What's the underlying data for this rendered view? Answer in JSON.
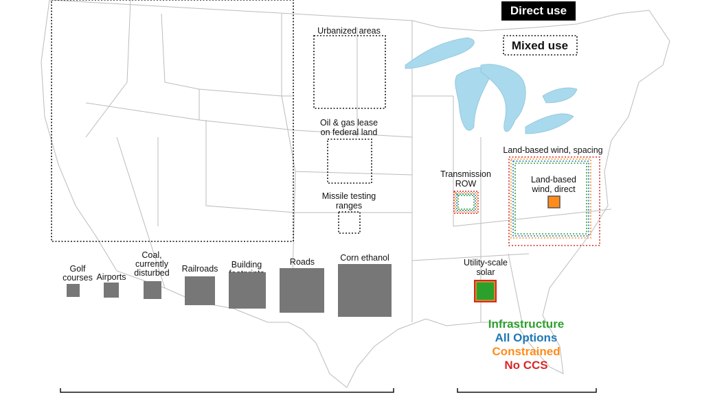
{
  "legend": {
    "direct": "Direct use",
    "mixed": "Mixed use"
  },
  "mixed_use_labels": {
    "urbanized": [
      "Urbanized areas"
    ],
    "oil_gas": [
      "Oil & gas lease",
      "on federal land"
    ],
    "missile": [
      "Missile testing",
      "ranges"
    ]
  },
  "direct_use_labels": {
    "golf": [
      "Golf",
      "courses"
    ],
    "airports": [
      "Airports"
    ],
    "coal": [
      "Coal,",
      "currently",
      "disturbed"
    ],
    "railroads": [
      "Railroads"
    ],
    "buildings": [
      "Building",
      "footprints"
    ],
    "roads": [
      "Roads"
    ],
    "corn": [
      "Corn ethanol"
    ]
  },
  "energy_labels": {
    "wind_spacing": [
      "Land-based wind, spacing"
    ],
    "wind_direct": [
      "Land-based",
      "wind, direct"
    ],
    "transmission": [
      "Transmission",
      "ROW"
    ],
    "solar": [
      "Utility-scale",
      "solar"
    ]
  },
  "scenarios": [
    {
      "name": "Infrastructure",
      "color": "#2ca02c"
    },
    {
      "name": "All Options",
      "color": "#1f77b4"
    },
    {
      "name": "Constrained",
      "color": "#ff8c1a"
    },
    {
      "name": "No CCS",
      "color": "#d62728"
    }
  ]
}
